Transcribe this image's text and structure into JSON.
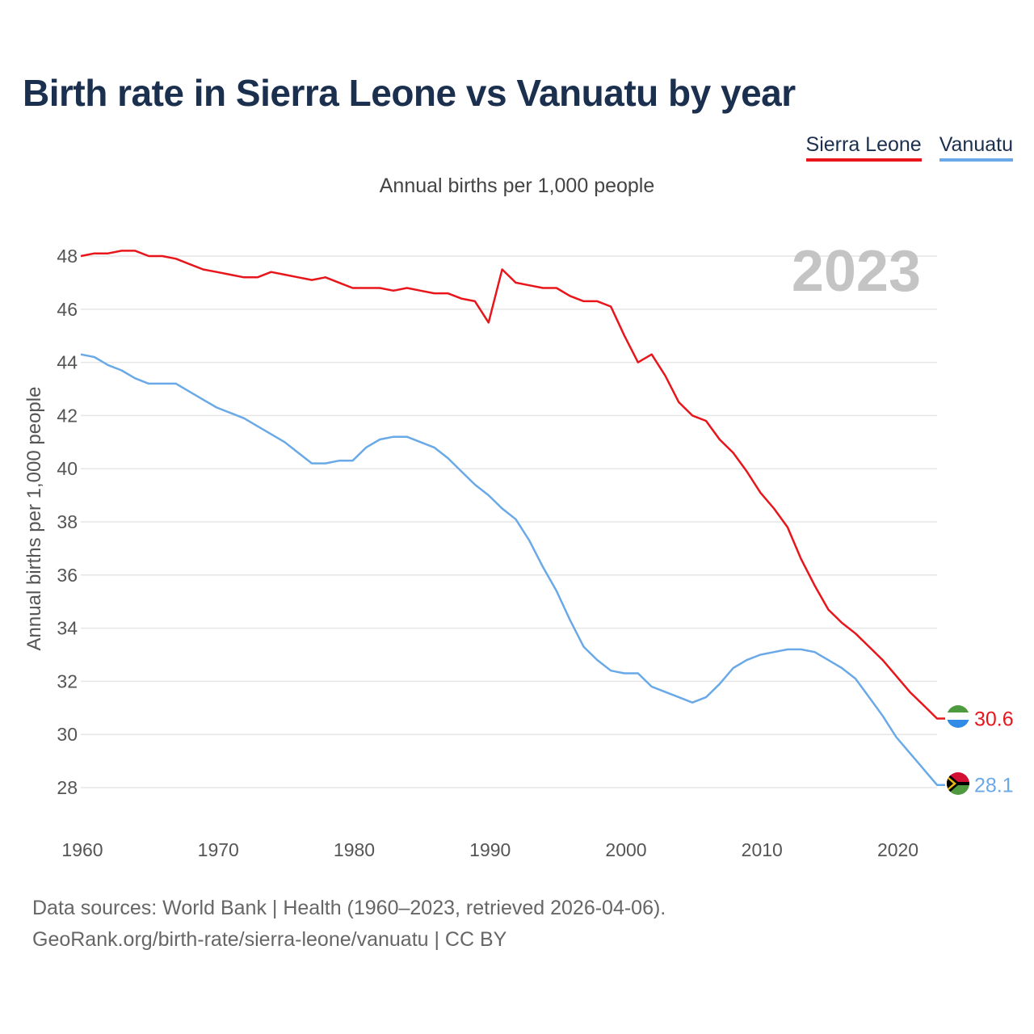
{
  "title": "Birth rate in Sierra Leone vs Vanuatu by year",
  "subtitle": "Annual births per 1,000 people",
  "legend": {
    "sierra_leone": "Sierra Leone",
    "vanuatu": "Vanuatu"
  },
  "source": {
    "line1": "Data sources: World Bank | Health (1960–2023, retrieved 2026-04-06).",
    "line2": "GeoRank.org/birth-rate/sierra-leone/vanuatu | CC BY"
  },
  "colors": {
    "sierra_leone": "#e8151b",
    "vanuatu": "#6aa9e8",
    "grid": "#e6e6e6",
    "axis_text": "#555555",
    "year_watermark": "#c4c4c4"
  },
  "chart_data": {
    "type": "line",
    "title": "Birth rate in Sierra Leone vs Vanuatu by year",
    "ylabel": "Annual births per 1,000 people",
    "xlabel": "",
    "current_year": "2023",
    "xlim": [
      1960,
      2023
    ],
    "ylim": [
      27,
      49
    ],
    "yticks": [
      28,
      30,
      32,
      34,
      36,
      38,
      40,
      42,
      44,
      46,
      48
    ],
    "xticks": [
      1960,
      1970,
      1980,
      1990,
      2000,
      2010,
      2020
    ],
    "x": [
      1960,
      1961,
      1962,
      1963,
      1964,
      1965,
      1966,
      1967,
      1968,
      1969,
      1970,
      1971,
      1972,
      1973,
      1974,
      1975,
      1976,
      1977,
      1978,
      1979,
      1980,
      1981,
      1982,
      1983,
      1984,
      1985,
      1986,
      1987,
      1988,
      1989,
      1990,
      1991,
      1992,
      1993,
      1994,
      1995,
      1996,
      1997,
      1998,
      1999,
      2000,
      2001,
      2002,
      2003,
      2004,
      2005,
      2006,
      2007,
      2008,
      2009,
      2010,
      2011,
      2012,
      2013,
      2014,
      2015,
      2016,
      2017,
      2018,
      2019,
      2020,
      2021,
      2022,
      2023
    ],
    "series": [
      {
        "name": "Sierra Leone",
        "color": "#e8151b",
        "end_label": "30.6",
        "values": [
          48.0,
          48.1,
          48.1,
          48.2,
          48.2,
          48.0,
          48.0,
          47.9,
          47.7,
          47.5,
          47.4,
          47.3,
          47.2,
          47.2,
          47.4,
          47.3,
          47.2,
          47.1,
          47.2,
          47.0,
          46.8,
          46.8,
          46.8,
          46.7,
          46.8,
          46.7,
          46.6,
          46.6,
          46.4,
          46.3,
          45.5,
          47.5,
          47.0,
          46.9,
          46.8,
          46.8,
          46.5,
          46.3,
          46.3,
          46.1,
          45.0,
          44.0,
          44.3,
          43.5,
          42.5,
          42.0,
          41.8,
          41.1,
          40.6,
          39.9,
          39.1,
          38.5,
          37.8,
          36.6,
          35.6,
          34.7,
          34.2,
          33.8,
          33.3,
          32.8,
          32.2,
          31.6,
          31.1,
          30.6
        ]
      },
      {
        "name": "Vanuatu",
        "color": "#6aa9e8",
        "end_label": "28.1",
        "values": [
          44.3,
          44.2,
          43.9,
          43.7,
          43.4,
          43.2,
          43.2,
          43.2,
          42.9,
          42.6,
          42.3,
          42.1,
          41.9,
          41.6,
          41.3,
          41.0,
          40.6,
          40.2,
          40.2,
          40.3,
          40.3,
          40.8,
          41.1,
          41.2,
          41.2,
          41.0,
          40.8,
          40.4,
          39.9,
          39.4,
          39.0,
          38.5,
          38.1,
          37.3,
          36.3,
          35.4,
          34.3,
          33.3,
          32.8,
          32.4,
          32.3,
          32.3,
          31.8,
          31.6,
          31.4,
          31.2,
          31.4,
          31.9,
          32.5,
          32.8,
          33.0,
          33.1,
          33.2,
          33.2,
          33.1,
          32.8,
          32.5,
          32.1,
          31.4,
          30.7,
          29.9,
          29.3,
          28.7,
          28.1
        ]
      }
    ]
  }
}
